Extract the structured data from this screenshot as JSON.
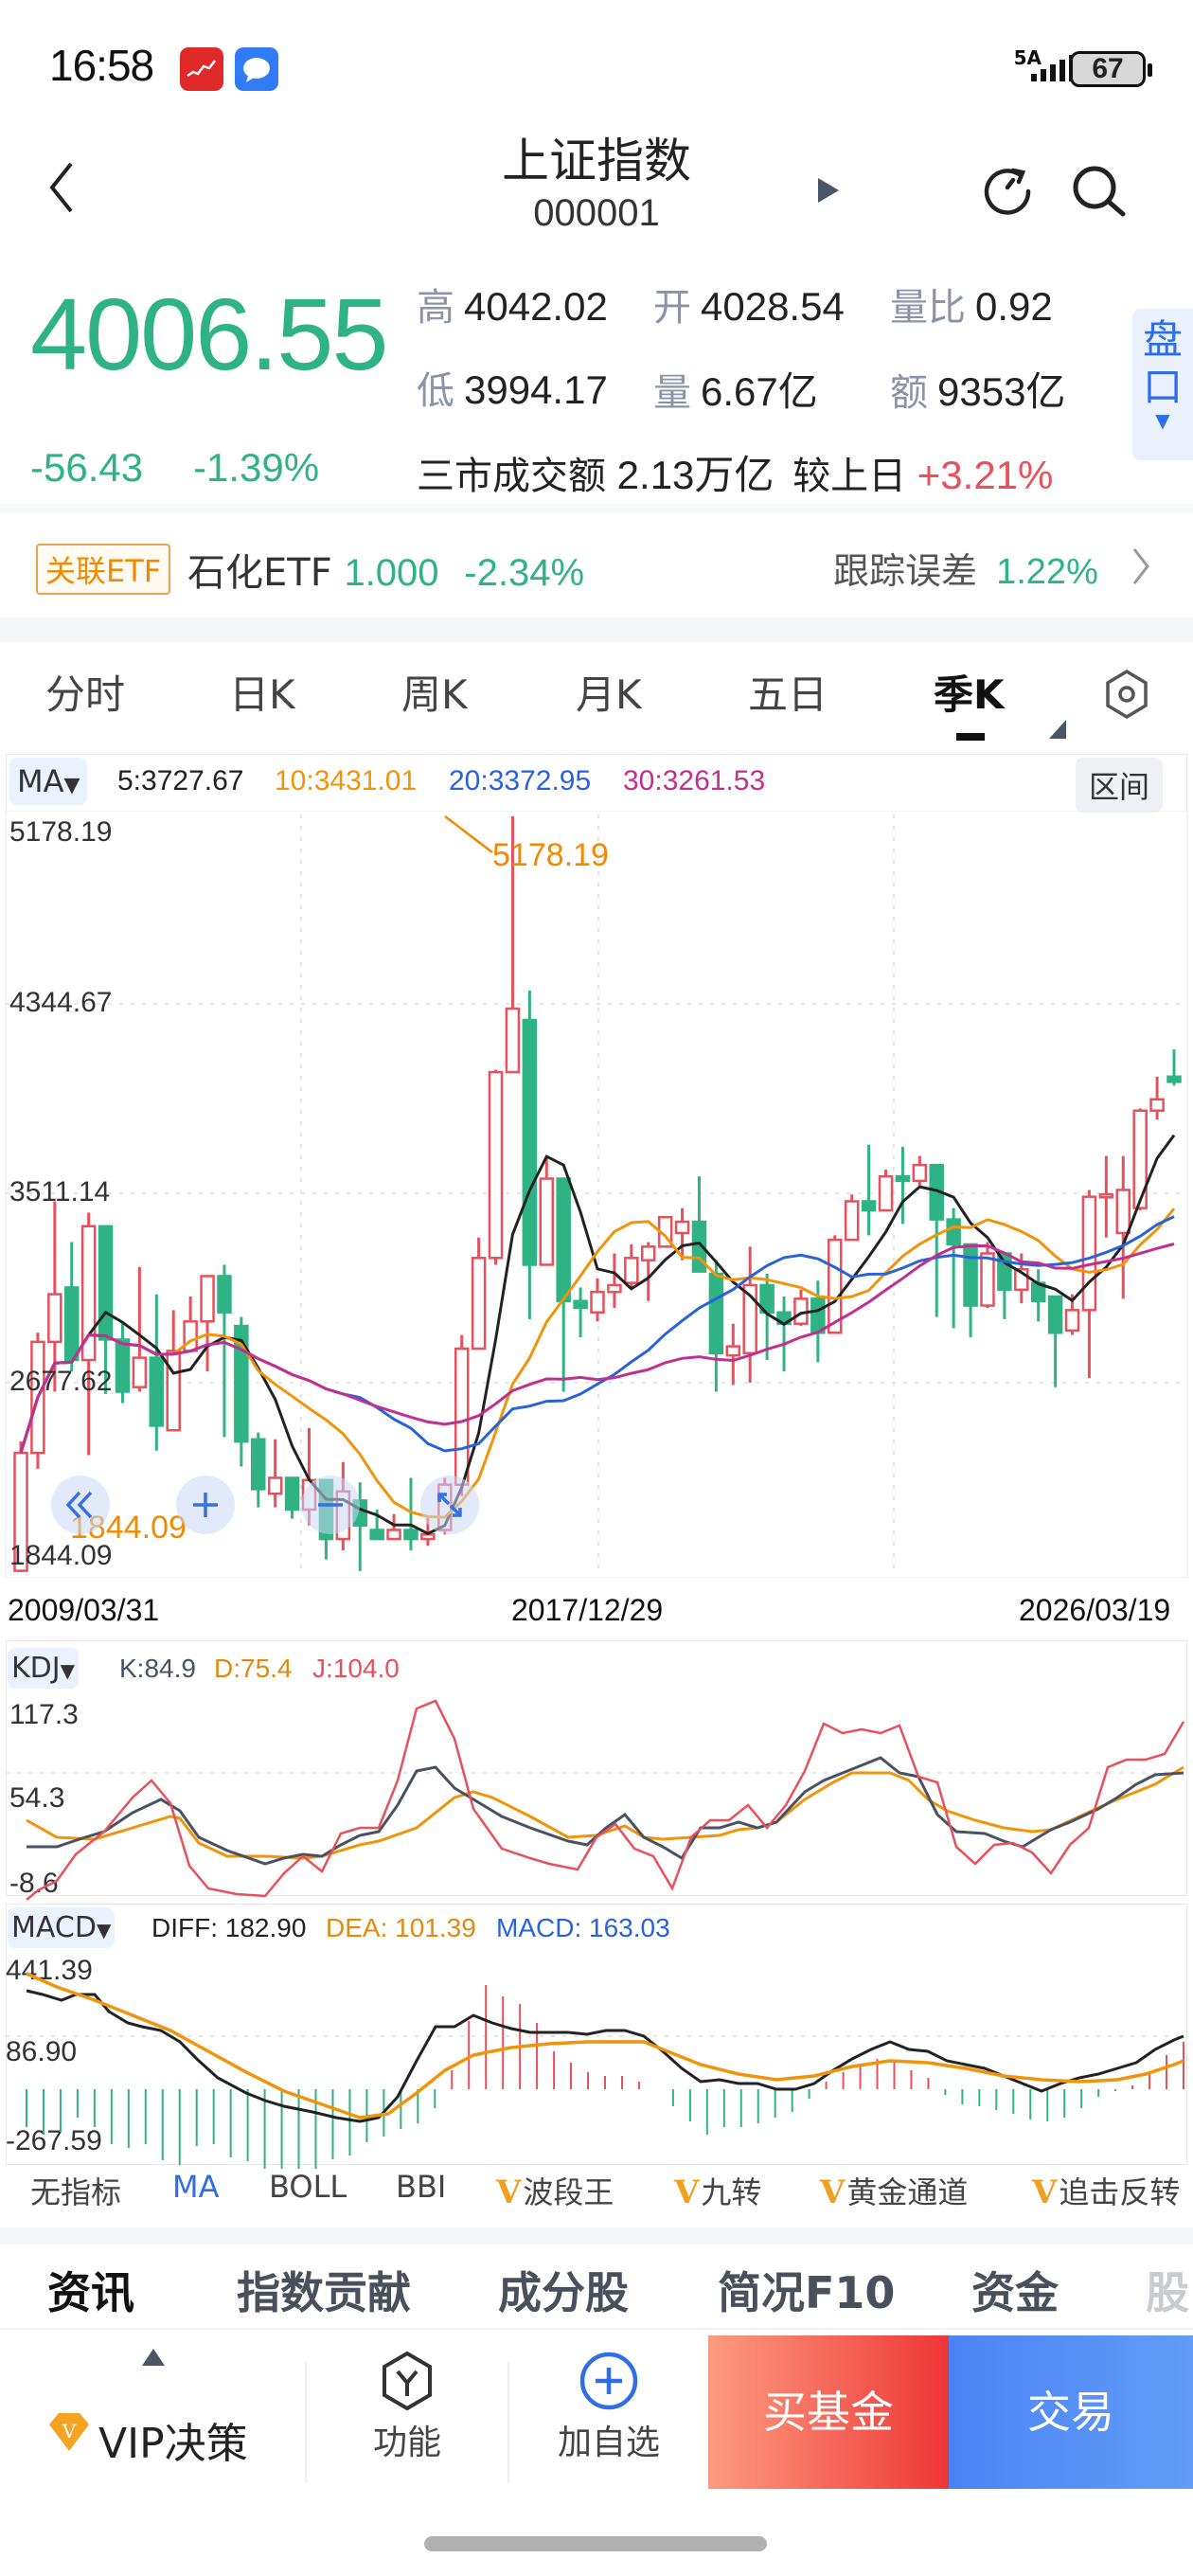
{
  "status_bar": {
    "time": "16:58",
    "network": "5A",
    "battery": "67"
  },
  "header": {
    "title": "上证指数",
    "code": "000001"
  },
  "quote": {
    "price": "4006.55",
    "change": "-56.43",
    "change_pct": "-1.39%",
    "high_label": "高",
    "high": "4042.02",
    "open_label": "开",
    "open": "4028.54",
    "vol_ratio_label": "量比",
    "vol_ratio": "0.92",
    "low_label": "低",
    "low": "3994.17",
    "volume_label": "量",
    "volume": "6.67亿",
    "amount_label": "额",
    "amount": "9353亿",
    "market_turnover_label": "三市成交额",
    "market_turnover": "2.13万亿",
    "vs_prev_label": "较上日",
    "vs_prev": "+3.21%",
    "pankou_label": "盘口"
  },
  "etf": {
    "tag": "关联ETF",
    "name": "石化ETF",
    "price": "1.000",
    "change_pct": "-2.34%",
    "tracking_label": "跟踪误差",
    "tracking_value": "1.22%"
  },
  "period_tabs": [
    {
      "label": "分时"
    },
    {
      "label": "日K"
    },
    {
      "label": "周K"
    },
    {
      "label": "月K"
    },
    {
      "label": "五日"
    },
    {
      "label": "季K",
      "active": true
    }
  ],
  "main_chart": {
    "indicator": "MA",
    "ma5": "5:3727.67",
    "ma10": "10:3431.01",
    "ma20": "20:3372.95",
    "ma30": "30:3261.53",
    "range_button": "区间",
    "y_labels": [
      "5178.19",
      "4344.67",
      "3511.14",
      "2677.62",
      "1844.09"
    ],
    "max_marker": "5178.19",
    "min_marker": "1844.09",
    "x_labels": [
      "2009/03/31",
      "2017/12/29",
      "2026/03/19"
    ]
  },
  "kdj": {
    "indicator": "KDJ",
    "k": "K:84.9",
    "d": "D:75.4",
    "j": "J:104.0",
    "y_labels": [
      "117.3",
      "54.3",
      "-8.6"
    ]
  },
  "macd": {
    "indicator": "MACD",
    "diff": "DIFF: 182.90",
    "dea": "DEA: 101.39",
    "macd": "MACD: 163.03",
    "y_labels": [
      "441.39",
      "86.90",
      "-267.59"
    ]
  },
  "indicator_chips": [
    {
      "label": "无指标",
      "vip": false
    },
    {
      "label": "MA",
      "vip": false,
      "active": true
    },
    {
      "label": "BOLL",
      "vip": false
    },
    {
      "label": "BBI",
      "vip": false
    },
    {
      "label": "波段王",
      "vip": true
    },
    {
      "label": "九转",
      "vip": true
    },
    {
      "label": "黄金通道",
      "vip": true
    },
    {
      "label": "追击反转",
      "vip": true
    }
  ],
  "bottom_tabs": [
    {
      "label": "资讯",
      "active": true
    },
    {
      "label": "指数贡献"
    },
    {
      "label": "成分股"
    },
    {
      "label": "简况F10"
    },
    {
      "label": "资金"
    },
    {
      "label": "股"
    }
  ],
  "footer": {
    "vip": "VIP决策",
    "function": "功能",
    "add_watch": "加自选",
    "buy_fund": "买基金",
    "trade": "交易"
  },
  "colors": {
    "up": "#e8505b",
    "down": "#2fb385",
    "ma5": "#222222",
    "ma10": "#f0940a",
    "ma20": "#2a62d9",
    "ma30": "#c0308f",
    "accent_blue": "#2f6ee6"
  },
  "chart_data": [
    {
      "type": "candlestick",
      "title": "上证指数 季K",
      "xlabel": "",
      "ylabel": "",
      "ylim": [
        1844.09,
        5178.19
      ],
      "x_range": [
        "2009/03/31",
        "2026/03/19"
      ],
      "y_ticks": [
        5178.19,
        4344.67,
        3511.14,
        2677.62,
        1844.09
      ],
      "annotations": [
        {
          "text": "5178.19",
          "type": "max"
        },
        {
          "text": "1844.09",
          "type": "min"
        }
      ],
      "candles": [
        [
          1850,
          2370,
          2420,
          1844
        ],
        [
          2370,
          2860,
          2900,
          2300
        ],
        [
          2860,
          3070,
          3480,
          2640
        ],
        [
          3100,
          2780,
          3300,
          2730
        ],
        [
          2780,
          3370,
          3430,
          2360
        ],
        [
          3370,
          2870,
          3200,
          2630
        ],
        [
          2870,
          2640,
          2940,
          2590
        ],
        [
          2660,
          2790,
          3190,
          2640
        ],
        [
          2790,
          2490,
          3070,
          2380
        ],
        [
          2470,
          2820,
          3000,
          2470
        ],
        [
          2820,
          2950,
          3060,
          2840
        ],
        [
          2950,
          3150,
          3150,
          2730
        ],
        [
          3150,
          2990,
          3200,
          2440
        ],
        [
          2930,
          2420,
          2970,
          2310
        ],
        [
          2430,
          2210,
          2460,
          2130
        ],
        [
          2190,
          2260,
          2430,
          2130
        ],
        [
          2260,
          2120,
          2240,
          2080
        ],
        [
          2120,
          2250,
          2480,
          2050
        ],
        [
          2250,
          1990,
          2240,
          1900
        ],
        [
          1990,
          2200,
          2330,
          1940
        ],
        [
          2160,
          2050,
          2240,
          1849
        ],
        [
          2030,
          1990,
          2120,
          1990
        ],
        [
          1990,
          2030,
          2100,
          2010
        ],
        [
          2030,
          1990,
          2260,
          1940
        ],
        [
          1990,
          2010,
          2090,
          1960
        ],
        [
          2030,
          2230,
          2260,
          2010
        ],
        [
          2230,
          2830,
          2890,
          2180
        ],
        [
          2830,
          3230,
          3320,
          2920
        ],
        [
          3230,
          4050,
          4060,
          3200
        ],
        [
          4050,
          4330,
          5178,
          4330
        ],
        [
          4280,
          3200,
          4410,
          2960
        ],
        [
          3200,
          3580,
          3680,
          3280
        ],
        [
          3580,
          3040,
          3360,
          2640
        ],
        [
          3040,
          3010,
          3100,
          2880
        ],
        [
          2990,
          3080,
          3140,
          2950
        ],
        [
          3080,
          3110,
          3250,
          3010
        ],
        [
          3120,
          3230,
          3290,
          3100
        ],
        [
          3220,
          3280,
          3300,
          3040
        ],
        [
          3280,
          3410,
          3300,
          3330
        ],
        [
          3340,
          3390,
          3450,
          3220
        ],
        [
          3390,
          3170,
          3590,
          3170
        ],
        [
          3160,
          2810,
          3220,
          2640
        ],
        [
          2800,
          2840,
          2940,
          2670
        ],
        [
          2810,
          3110,
          3280,
          2680
        ],
        [
          3110,
          2990,
          3160,
          2780
        ],
        [
          2990,
          2940,
          3060,
          2730
        ],
        [
          2940,
          3050,
          3090,
          2930
        ],
        [
          3050,
          2900,
          3130,
          2770
        ],
        [
          2900,
          3310,
          3330,
          2910
        ],
        [
          3310,
          3480,
          3510,
          3390
        ],
        [
          3480,
          3440,
          3730,
          3330
        ],
        [
          3440,
          3590,
          3620,
          3450
        ],
        [
          3590,
          3570,
          3720,
          3380
        ],
        [
          3570,
          3640,
          3680,
          3550
        ],
        [
          3640,
          3400,
          3630,
          2970
        ],
        [
          3400,
          3290,
          3450,
          2920
        ],
        [
          3290,
          3020,
          3280,
          2880
        ],
        [
          3020,
          3250,
          3300,
          3010
        ],
        [
          3250,
          3090,
          3160,
          2960
        ],
        [
          3090,
          3180,
          3250,
          3030
        ],
        [
          3120,
          3040,
          3180,
          2950
        ],
        [
          3060,
          2900,
          3060,
          2660
        ],
        [
          2910,
          3000,
          3070,
          2890
        ],
        [
          3000,
          3500,
          3530,
          2700
        ],
        [
          3500,
          3510,
          3680,
          3320
        ],
        [
          3340,
          3530,
          3680,
          3050
        ],
        [
          3450,
          3880,
          3890,
          3440
        ],
        [
          3880,
          3930,
          4030,
          3840
        ],
        [
          4030,
          4007,
          4150,
          3990
        ]
      ],
      "series": [
        {
          "name": "MA5",
          "last": 3727.67
        },
        {
          "name": "MA10",
          "last": 3431.01
        },
        {
          "name": "MA20",
          "last": 3372.95
        },
        {
          "name": "MA30",
          "last": 3261.53
        }
      ]
    },
    {
      "type": "line",
      "title": "KDJ",
      "ylim": [
        -8.6,
        117.3
      ],
      "y_ticks": [
        117.3,
        54.3,
        -8.6
      ],
      "series": [
        {
          "name": "K",
          "last": 84.9
        },
        {
          "name": "D",
          "last": 75.4
        },
        {
          "name": "J",
          "last": 104.0
        }
      ]
    },
    {
      "type": "bar",
      "title": "MACD",
      "ylim": [
        -267.59,
        441.39
      ],
      "y_ticks": [
        441.39,
        86.9,
        -267.59
      ],
      "series": [
        {
          "name": "DIFF",
          "last": 182.9
        },
        {
          "name": "DEA",
          "last": 101.39
        },
        {
          "name": "MACD",
          "last": 163.03
        }
      ]
    }
  ]
}
